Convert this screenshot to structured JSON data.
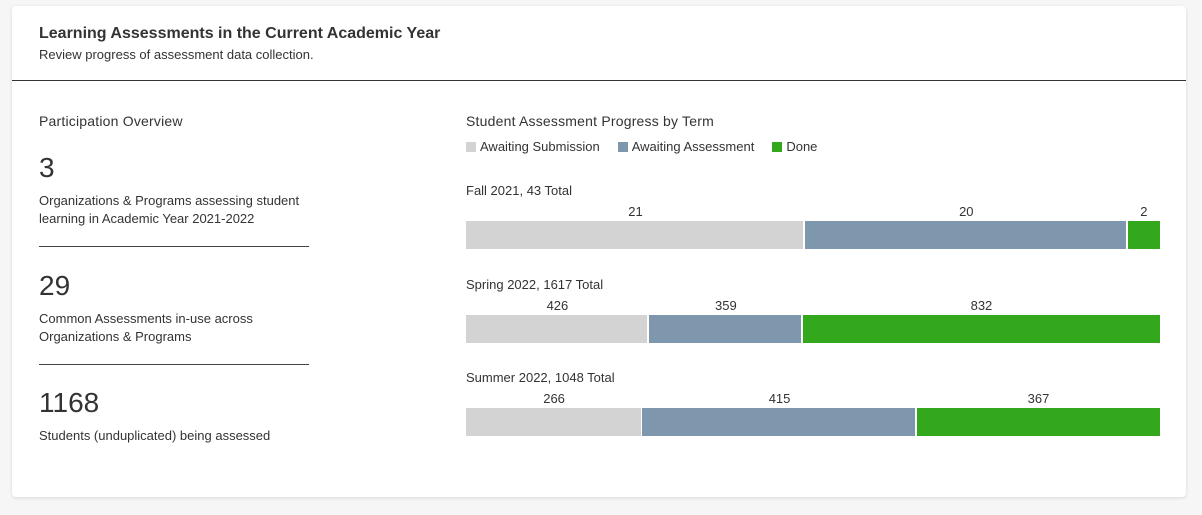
{
  "header": {
    "title": "Learning Assessments in the Current Academic Year",
    "subtitle": "Review progress of assessment data collection."
  },
  "overview": {
    "title": "Participation Overview",
    "stats": [
      {
        "value": "3",
        "desc": "Organizations & Programs assessing student learning in Academic Year 2021-2022"
      },
      {
        "value": "29",
        "desc": "Common Assessments in-use across Organizations & Programs"
      },
      {
        "value": "1168",
        "desc": "Students (unduplicated) being assessed"
      }
    ]
  },
  "chart_data": {
    "type": "bar",
    "orientation": "horizontal-stacked",
    "title": "Student Assessment Progress by Term",
    "legend_position": "top-left",
    "grid": false,
    "series": [
      {
        "name": "Awaiting Submission",
        "color": "#d3d3d3"
      },
      {
        "name": "Awaiting Assessment",
        "color": "#7f97ad"
      },
      {
        "name": "Done",
        "color": "#33a81c"
      }
    ],
    "terms": [
      {
        "label": "Fall 2021, 43 Total",
        "values": [
          21,
          20,
          2
        ]
      },
      {
        "label": "Spring 2022, 1617 Total",
        "values": [
          426,
          359,
          832
        ]
      },
      {
        "label": "Summer 2022, 1048 Total",
        "values": [
          266,
          415,
          367
        ]
      }
    ]
  }
}
